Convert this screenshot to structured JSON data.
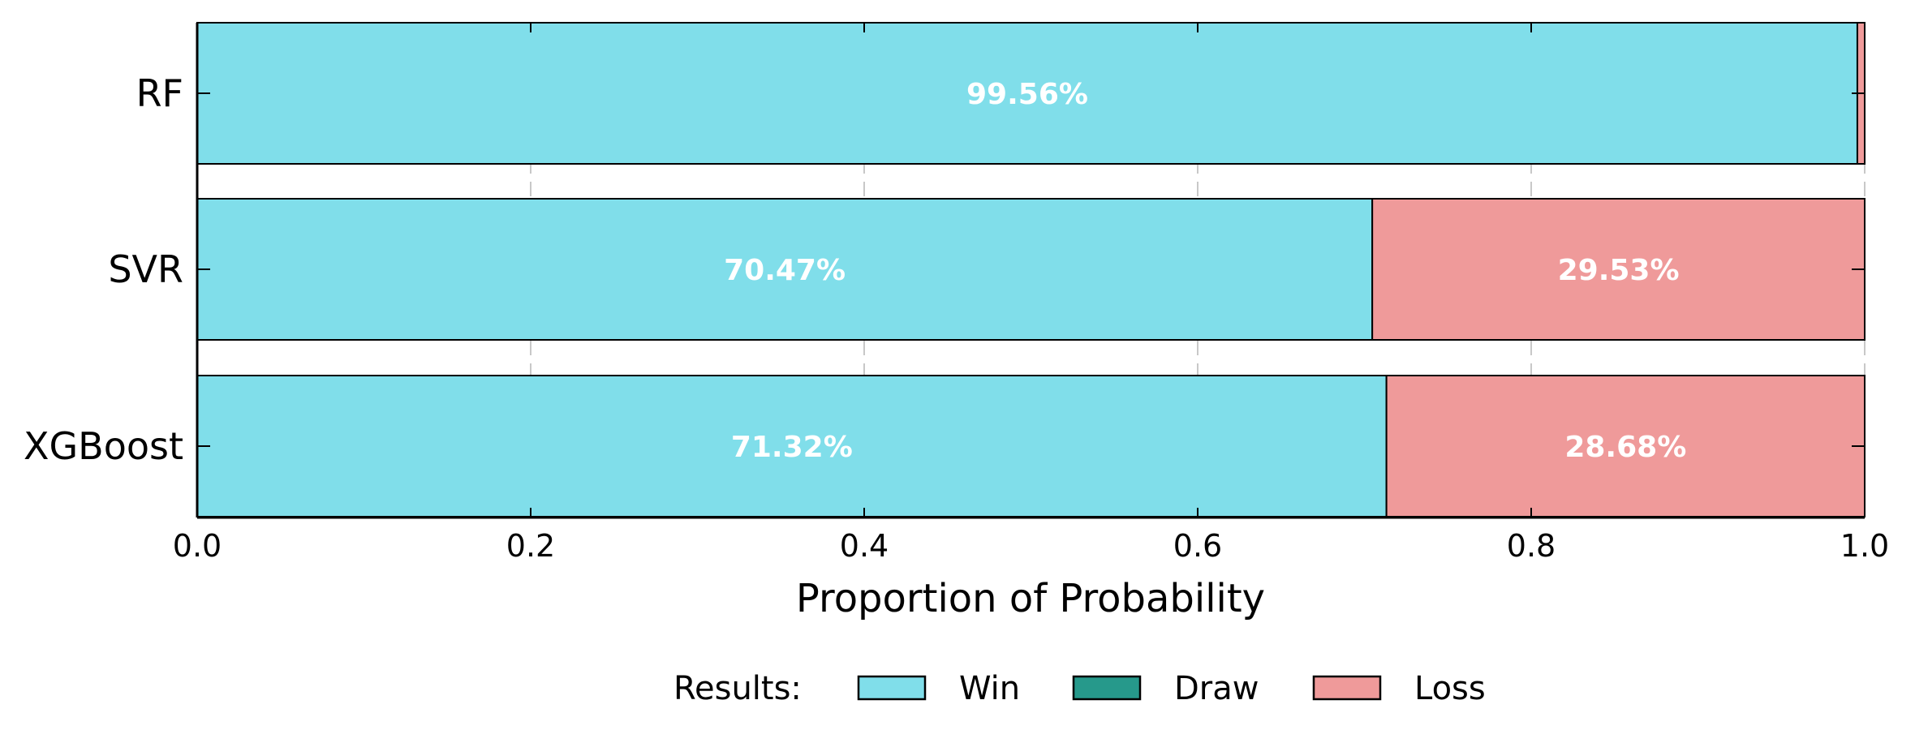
{
  "chart_data": {
    "type": "bar",
    "orientation": "horizontal",
    "stacked": true,
    "categories": [
      "RF",
      "SVR",
      "XGBoost"
    ],
    "series": [
      {
        "name": "Win",
        "color": "#80deea",
        "values": [
          0.9956,
          0.7047,
          0.7132
        ]
      },
      {
        "name": "Draw",
        "color": "#26998b",
        "values": [
          0.0,
          0.0,
          0.0
        ]
      },
      {
        "name": "Loss",
        "color": "#ef9a9a",
        "values": [
          0.0044,
          0.2953,
          0.2868
        ]
      }
    ],
    "data_labels": [
      {
        "category": "RF",
        "series": "Win",
        "text": "99.56%"
      },
      {
        "category": "SVR",
        "series": "Win",
        "text": "70.47%"
      },
      {
        "category": "SVR",
        "series": "Loss",
        "text": "29.53%"
      },
      {
        "category": "XGBoost",
        "series": "Win",
        "text": "71.32%"
      },
      {
        "category": "XGBoost",
        "series": "Loss",
        "text": "28.68%"
      }
    ],
    "xlabel": "Proportion of Probability",
    "ylabel": "",
    "xlim": [
      0.0,
      1.0
    ],
    "xticks": [
      "0.0",
      "0.2",
      "0.4",
      "0.6",
      "0.8",
      "1.0"
    ],
    "grid": "vertical dashed",
    "legend": {
      "title": "Results:",
      "placement": "bottom-center"
    }
  }
}
